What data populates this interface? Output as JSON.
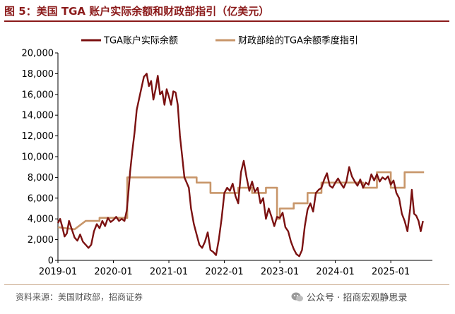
{
  "title": "图 5：美国 TGA 账户实际余额和财政部指引（亿美元）",
  "source": "资料来源：美国财政部，招商证券",
  "watermark": {
    "icon": "wechat-icon",
    "text": "公众号 · 招商宏观静思录"
  },
  "colors": {
    "actual": "#7b1111",
    "guidance": "#c8966a",
    "title": "#8b1a1a"
  },
  "chart_data": {
    "type": "line",
    "title": "美国 TGA 账户实际余额和财政部指引（亿美元）",
    "xlabel": "",
    "ylabel": "",
    "x_ticks": [
      "2019-01",
      "2020-01",
      "2021-01",
      "2022-01",
      "2023-01",
      "2024-01",
      "2025-01"
    ],
    "xlim": [
      2019.0,
      2025.75
    ],
    "ylim": [
      0,
      20000
    ],
    "y_ticks": [
      0,
      2000,
      4000,
      6000,
      8000,
      10000,
      12000,
      14000,
      16000,
      18000,
      20000
    ],
    "y_tick_labels": [
      "0",
      "2,000",
      "4,000",
      "6,000",
      "8,000",
      "10,000",
      "12,000",
      "14,000",
      "16,000",
      "18,000",
      "20,000"
    ],
    "legend_position": "top",
    "series": [
      {
        "name": "TGA账户实际余额",
        "style": "line",
        "points": [
          [
            2019.0,
            3600
          ],
          [
            2019.04,
            4000
          ],
          [
            2019.08,
            3200
          ],
          [
            2019.12,
            2300
          ],
          [
            2019.16,
            2600
          ],
          [
            2019.2,
            3800
          ],
          [
            2019.25,
            3000
          ],
          [
            2019.3,
            2200
          ],
          [
            2019.35,
            1900
          ],
          [
            2019.4,
            2500
          ],
          [
            2019.45,
            1800
          ],
          [
            2019.5,
            1500
          ],
          [
            2019.55,
            1200
          ],
          [
            2019.6,
            1500
          ],
          [
            2019.65,
            2800
          ],
          [
            2019.7,
            3500
          ],
          [
            2019.75,
            3100
          ],
          [
            2019.8,
            3800
          ],
          [
            2019.85,
            3300
          ],
          [
            2019.9,
            4100
          ],
          [
            2019.95,
            3700
          ],
          [
            2020.0,
            3900
          ],
          [
            2020.05,
            4200
          ],
          [
            2020.1,
            3800
          ],
          [
            2020.15,
            4000
          ],
          [
            2020.2,
            3800
          ],
          [
            2020.24,
            4800
          ],
          [
            2020.27,
            6500
          ],
          [
            2020.3,
            8500
          ],
          [
            2020.34,
            10500
          ],
          [
            2020.38,
            12300
          ],
          [
            2020.42,
            14500
          ],
          [
            2020.46,
            15500
          ],
          [
            2020.5,
            16500
          ],
          [
            2020.55,
            17700
          ],
          [
            2020.6,
            18000
          ],
          [
            2020.64,
            16800
          ],
          [
            2020.68,
            17300
          ],
          [
            2020.72,
            15500
          ],
          [
            2020.76,
            16500
          ],
          [
            2020.8,
            17800
          ],
          [
            2020.84,
            16000
          ],
          [
            2020.88,
            16300
          ],
          [
            2020.92,
            15000
          ],
          [
            2020.96,
            16500
          ],
          [
            2021.0,
            15800
          ],
          [
            2021.04,
            15000
          ],
          [
            2021.08,
            16300
          ],
          [
            2021.12,
            16200
          ],
          [
            2021.16,
            15000
          ],
          [
            2021.2,
            12000
          ],
          [
            2021.24,
            10000
          ],
          [
            2021.28,
            8000
          ],
          [
            2021.32,
            7500
          ],
          [
            2021.36,
            7000
          ],
          [
            2021.4,
            5000
          ],
          [
            2021.45,
            3500
          ],
          [
            2021.5,
            2500
          ],
          [
            2021.55,
            1500
          ],
          [
            2021.6,
            1200
          ],
          [
            2021.65,
            1800
          ],
          [
            2021.7,
            2700
          ],
          [
            2021.75,
            1000
          ],
          [
            2021.8,
            800
          ],
          [
            2021.85,
            500
          ],
          [
            2021.9,
            2000
          ],
          [
            2021.95,
            4000
          ],
          [
            2022.0,
            6500
          ],
          [
            2022.05,
            7000
          ],
          [
            2022.1,
            6700
          ],
          [
            2022.15,
            7400
          ],
          [
            2022.2,
            6200
          ],
          [
            2022.25,
            5500
          ],
          [
            2022.3,
            8500
          ],
          [
            2022.35,
            9600
          ],
          [
            2022.4,
            8000
          ],
          [
            2022.45,
            6700
          ],
          [
            2022.5,
            7600
          ],
          [
            2022.55,
            6600
          ],
          [
            2022.6,
            7000
          ],
          [
            2022.65,
            5500
          ],
          [
            2022.7,
            6000
          ],
          [
            2022.75,
            4000
          ],
          [
            2022.8,
            5000
          ],
          [
            2022.85,
            4200
          ],
          [
            2022.9,
            3300
          ],
          [
            2022.95,
            4200
          ],
          [
            2023.0,
            4100
          ],
          [
            2023.05,
            4600
          ],
          [
            2023.1,
            3200
          ],
          [
            2023.15,
            2800
          ],
          [
            2023.2,
            1800
          ],
          [
            2023.25,
            1100
          ],
          [
            2023.3,
            600
          ],
          [
            2023.35,
            400
          ],
          [
            2023.4,
            1000
          ],
          [
            2023.45,
            3300
          ],
          [
            2023.5,
            4900
          ],
          [
            2023.55,
            5500
          ],
          [
            2023.6,
            4700
          ],
          [
            2023.65,
            6500
          ],
          [
            2023.7,
            6800
          ],
          [
            2023.75,
            7000
          ],
          [
            2023.8,
            7800
          ],
          [
            2023.85,
            8400
          ],
          [
            2023.9,
            7200
          ],
          [
            2023.95,
            7000
          ],
          [
            2024.0,
            7500
          ],
          [
            2024.05,
            7900
          ],
          [
            2024.1,
            7400
          ],
          [
            2024.15,
            7000
          ],
          [
            2024.2,
            7600
          ],
          [
            2024.25,
            9000
          ],
          [
            2024.3,
            8100
          ],
          [
            2024.35,
            7600
          ],
          [
            2024.4,
            7200
          ],
          [
            2024.45,
            7800
          ],
          [
            2024.5,
            7000
          ],
          [
            2024.55,
            7500
          ],
          [
            2024.6,
            7300
          ],
          [
            2024.65,
            8300
          ],
          [
            2024.7,
            7700
          ],
          [
            2024.75,
            8300
          ],
          [
            2024.8,
            7600
          ],
          [
            2024.85,
            8000
          ],
          [
            2024.9,
            7800
          ],
          [
            2024.95,
            8100
          ],
          [
            2025.0,
            7300
          ],
          [
            2025.05,
            7700
          ],
          [
            2025.1,
            6500
          ],
          [
            2025.15,
            6000
          ],
          [
            2025.2,
            4500
          ],
          [
            2025.25,
            3800
          ],
          [
            2025.3,
            2800
          ],
          [
            2025.35,
            5000
          ],
          [
            2025.38,
            6800
          ],
          [
            2025.42,
            4500
          ],
          [
            2025.46,
            4300
          ],
          [
            2025.5,
            3800
          ],
          [
            2025.54,
            2800
          ],
          [
            2025.58,
            3800
          ]
        ]
      },
      {
        "name": "财政部给的TGA余额季度指引",
        "style": "step",
        "points": [
          [
            2019.0,
            3200
          ],
          [
            2019.3,
            3000
          ],
          [
            2019.5,
            3800
          ],
          [
            2019.75,
            3800
          ],
          [
            2019.75,
            4100
          ],
          [
            2020.0,
            4100
          ],
          [
            2020.1,
            4100
          ],
          [
            2020.25,
            4100
          ],
          [
            2020.25,
            8000
          ],
          [
            2021.5,
            8000
          ],
          [
            2021.5,
            7500
          ],
          [
            2021.75,
            7500
          ],
          [
            2021.75,
            6500
          ],
          [
            2022.25,
            6500
          ],
          [
            2022.25,
            7000
          ],
          [
            2022.5,
            7000
          ],
          [
            2022.5,
            6500
          ],
          [
            2022.75,
            6500
          ],
          [
            2022.75,
            7000
          ],
          [
            2022.95,
            7000
          ],
          [
            2022.95,
            4000
          ],
          [
            2023.0,
            4000
          ],
          [
            2023.0,
            5000
          ],
          [
            2023.25,
            5000
          ],
          [
            2023.25,
            5500
          ],
          [
            2023.5,
            5500
          ],
          [
            2023.5,
            6500
          ],
          [
            2023.75,
            6500
          ],
          [
            2023.75,
            7500
          ],
          [
            2024.0,
            7500
          ],
          [
            2024.25,
            7500
          ],
          [
            2024.25,
            7500
          ],
          [
            2024.5,
            7500
          ],
          [
            2024.5,
            7000
          ],
          [
            2024.75,
            7000
          ],
          [
            2024.75,
            8500
          ],
          [
            2025.0,
            8500
          ],
          [
            2025.0,
            7000
          ],
          [
            2025.25,
            7000
          ],
          [
            2025.25,
            8500
          ],
          [
            2025.6,
            8500
          ]
        ]
      }
    ]
  }
}
